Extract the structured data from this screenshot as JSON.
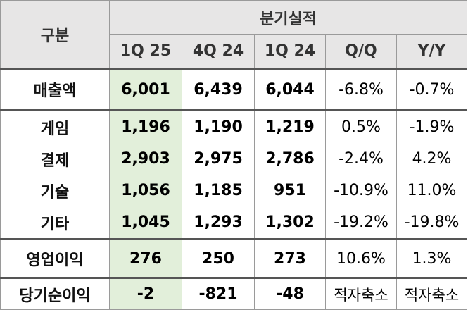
{
  "header": {
    "category": "구분",
    "group": "분기실적",
    "columns": [
      "1Q 25",
      "4Q 24",
      "1Q 24",
      "Q/Q",
      "Y/Y"
    ]
  },
  "rows": [
    {
      "label": "매출액",
      "values": [
        "6,001",
        "6,439",
        "6,044",
        "-6.8%",
        "-0.7%"
      ]
    },
    {
      "label": "게임",
      "values": [
        "1,196",
        "1,190",
        "1,219",
        "0.5%",
        "-1.9%"
      ]
    },
    {
      "label": "결제",
      "values": [
        "2,903",
        "2,975",
        "2,786",
        "-2.4%",
        "4.2%"
      ]
    },
    {
      "label": "기술",
      "values": [
        "1,056",
        "1,185",
        "951",
        "-10.9%",
        "11.0%"
      ]
    },
    {
      "label": "기타",
      "values": [
        "1,045",
        "1,293",
        "1,302",
        "-19.2%",
        "-19.8%"
      ]
    },
    {
      "label": "영업이익",
      "values": [
        "276",
        "250",
        "273",
        "10.6%",
        "1.3%"
      ]
    },
    {
      "label": "당기순이익",
      "values": [
        "-2",
        "-821",
        "-48",
        "적자축소",
        "적자축소"
      ]
    }
  ],
  "colors": {
    "header_bg": "#e7e6e6",
    "highlight_bg": "#e2efda",
    "border": "#9a9a9a"
  }
}
